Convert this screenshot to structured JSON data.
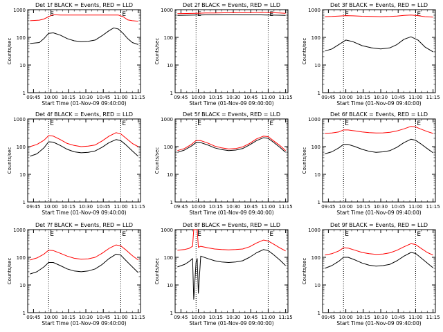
{
  "x_tick_labels": [
    "09:45",
    "10:00",
    "10:15",
    "10:30",
    "10:45",
    "11:00",
    "11:15"
  ],
  "y_tick_labels": [
    "1",
    "10",
    "100",
    "1000"
  ],
  "ylabel": "Counts/sec",
  "xlabel": "Start Time (01-Nov-09 09:40:00)",
  "marker_text": "E",
  "colors": {
    "events": "#000000",
    "lld": "#ff0000",
    "background": "#ffffff"
  },
  "chart_data": [
    {
      "type": "line",
      "title": "Det 1f BLACK = Events, RED = LLD",
      "x_unit": "minutes after 09:40:00",
      "xlim": [
        0,
        97
      ],
      "ylim": [
        1,
        1000
      ],
      "yscale": "log",
      "markers_x": [
        18,
        80
      ],
      "x": [
        2,
        10,
        14,
        18,
        22,
        28,
        34,
        40,
        46,
        52,
        58,
        64,
        70,
        74,
        78,
        82,
        86,
        90,
        95
      ],
      "series": [
        {
          "name": "Events",
          "values": [
            60,
            65,
            90,
            140,
            145,
            120,
            90,
            75,
            70,
            72,
            80,
            115,
            175,
            220,
            200,
            140,
            90,
            65,
            55
          ]
        },
        {
          "name": "LLD",
          "values": [
            400,
            420,
            460,
            560,
            660,
            640,
            640,
            640,
            640,
            640,
            640,
            640,
            640,
            640,
            640,
            560,
            430,
            400,
            380
          ]
        }
      ]
    },
    {
      "type": "line",
      "title": "Det 2f BLACK = Events, RED = LLD",
      "x_unit": "minutes after 09:40:00",
      "xlim": [
        0,
        97
      ],
      "ylim": [
        1,
        1000
      ],
      "yscale": "log",
      "markers_x": [
        18,
        80
      ],
      "x": [
        2,
        10,
        18,
        26,
        34,
        42,
        50,
        58,
        66,
        74,
        82,
        90,
        95
      ],
      "series": [
        {
          "name": "Events",
          "values": [
            620,
            630,
            640,
            650,
            650,
            660,
            660,
            650,
            650,
            650,
            640,
            630,
            620
          ]
        },
        {
          "name": "LLD",
          "values": [
            720,
            730,
            740,
            760,
            760,
            770,
            780,
            770,
            780,
            800,
            780,
            760,
            740
          ]
        }
      ]
    },
    {
      "type": "line",
      "title": "Det 3f BLACK = Events, RED = LLD",
      "x_unit": "minutes after 09:40:00",
      "xlim": [
        0,
        97
      ],
      "ylim": [
        1,
        1000
      ],
      "yscale": "log",
      "markers_x": [
        18,
        80
      ],
      "x": [
        2,
        8,
        14,
        20,
        26,
        34,
        42,
        50,
        58,
        64,
        70,
        76,
        82,
        88,
        95
      ],
      "series": [
        {
          "name": "Events",
          "values": [
            32,
            38,
            55,
            80,
            70,
            50,
            42,
            38,
            42,
            55,
            85,
            105,
            80,
            45,
            30
          ]
        },
        {
          "name": "LLD",
          "values": [
            560,
            570,
            590,
            610,
            600,
            580,
            570,
            560,
            570,
            590,
            620,
            640,
            610,
            560,
            540
          ]
        }
      ]
    },
    {
      "type": "line",
      "title": "Det 4f BLACK = Events, RED = LLD",
      "x_unit": "minutes after 09:40:00",
      "xlim": [
        0,
        97
      ],
      "ylim": [
        1,
        1000
      ],
      "yscale": "log",
      "markers_x": [
        18,
        80
      ],
      "x": [
        2,
        8,
        14,
        18,
        22,
        28,
        34,
        40,
        46,
        52,
        58,
        64,
        70,
        76,
        80,
        84,
        90,
        95
      ],
      "series": [
        {
          "name": "Events",
          "values": [
            45,
            55,
            90,
            150,
            145,
            110,
            80,
            65,
            60,
            62,
            70,
            95,
            140,
            180,
            165,
            120,
            70,
            45
          ]
        },
        {
          "name": "LLD",
          "values": [
            100,
            120,
            170,
            250,
            240,
            180,
            130,
            110,
            100,
            105,
            115,
            160,
            240,
            320,
            290,
            210,
            130,
            100
          ]
        }
      ]
    },
    {
      "type": "line",
      "title": "Det 5f BLACK = Events, RED = LLD",
      "x_unit": "minutes after 09:40:00",
      "xlim": [
        0,
        97
      ],
      "ylim": [
        1,
        1000
      ],
      "yscale": "log",
      "markers_x": [
        18,
        80
      ],
      "x": [
        2,
        8,
        14,
        18,
        22,
        28,
        34,
        40,
        46,
        52,
        58,
        64,
        70,
        76,
        80,
        84,
        90,
        95
      ],
      "series": [
        {
          "name": "Events",
          "values": [
            62,
            75,
            105,
            140,
            140,
            115,
            90,
            78,
            72,
            75,
            85,
            115,
            165,
            210,
            200,
            150,
            95,
            62
          ]
        },
        {
          "name": "LLD",
          "values": [
            72,
            85,
            120,
            165,
            165,
            135,
            105,
            90,
            82,
            85,
            98,
            130,
            190,
            240,
            230,
            170,
            110,
            72
          ]
        }
      ]
    },
    {
      "type": "line",
      "title": "Det 6f BLACK = Events, RED = LLD",
      "x_unit": "minutes after 09:40:00",
      "xlim": [
        0,
        97
      ],
      "ylim": [
        1,
        1000
      ],
      "yscale": "log",
      "markers_x": [
        18,
        80
      ],
      "x": [
        2,
        8,
        14,
        18,
        22,
        28,
        34,
        40,
        46,
        52,
        58,
        64,
        70,
        76,
        80,
        84,
        90,
        95
      ],
      "series": [
        {
          "name": "Events",
          "values": [
            55,
            65,
            90,
            120,
            120,
            100,
            80,
            68,
            62,
            65,
            72,
            95,
            140,
            185,
            170,
            130,
            85,
            60
          ]
        },
        {
          "name": "LLD",
          "values": [
            300,
            310,
            340,
            400,
            400,
            370,
            340,
            320,
            310,
            315,
            330,
            370,
            440,
            540,
            520,
            440,
            350,
            300
          ]
        }
      ]
    },
    {
      "type": "line",
      "title": "Det 7f BLACK = Events, RED = LLD",
      "x_unit": "minutes after 09:40:00",
      "xlim": [
        0,
        97
      ],
      "ylim": [
        1,
        1000
      ],
      "yscale": "log",
      "markers_x": [
        18,
        80
      ],
      "x": [
        2,
        8,
        14,
        18,
        22,
        28,
        34,
        40,
        46,
        52,
        58,
        64,
        70,
        76,
        80,
        84,
        90,
        95
      ],
      "series": [
        {
          "name": "Events",
          "values": [
            25,
            30,
            45,
            65,
            65,
            50,
            38,
            32,
            30,
            32,
            38,
            55,
            90,
            130,
            120,
            80,
            45,
            28
          ]
        },
        {
          "name": "LLD",
          "values": [
            80,
            95,
            130,
            180,
            175,
            140,
            110,
            92,
            85,
            88,
            100,
            140,
            210,
            280,
            260,
            190,
            115,
            80
          ]
        }
      ]
    },
    {
      "type": "line",
      "title": "Det 8f BLACK = Events, RED = LLD",
      "x_unit": "minutes after 09:40:00",
      "xlim": [
        0,
        97
      ],
      "ylim": [
        1,
        1000
      ],
      "yscale": "log",
      "markers_x": [
        18,
        80
      ],
      "x": [
        2,
        8,
        12,
        15,
        16,
        18,
        19,
        20,
        22,
        28,
        34,
        40,
        46,
        52,
        58,
        64,
        70,
        76,
        80,
        84,
        90,
        95
      ],
      "series": [
        {
          "name": "Events",
          "values": [
            45,
            55,
            70,
            90,
            3,
            65,
            90,
            5,
            110,
            90,
            75,
            68,
            65,
            68,
            75,
            100,
            145,
            190,
            175,
            130,
            80,
            50
          ]
        },
        {
          "name": "LLD",
          "values": [
            180,
            190,
            210,
            250,
            1000,
            1000,
            1000,
            230,
            250,
            220,
            200,
            190,
            185,
            190,
            200,
            240,
            330,
            420,
            390,
            310,
            220,
            170
          ]
        }
      ]
    },
    {
      "type": "line",
      "title": "Det 9f BLACK = Events, RED = LLD",
      "x_unit": "minutes after 09:40:00",
      "xlim": [
        0,
        97
      ],
      "ylim": [
        1,
        1000
      ],
      "yscale": "log",
      "markers_x": [
        18,
        80
      ],
      "x": [
        2,
        8,
        14,
        18,
        22,
        28,
        34,
        40,
        46,
        52,
        58,
        64,
        70,
        76,
        80,
        84,
        90,
        95
      ],
      "series": [
        {
          "name": "Events",
          "values": [
            40,
            50,
            72,
            100,
            100,
            80,
            62,
            52,
            48,
            50,
            56,
            75,
            110,
            150,
            138,
            100,
            62,
            42
          ]
        },
        {
          "name": "LLD",
          "values": [
            120,
            135,
            170,
            220,
            215,
            180,
            150,
            135,
            128,
            132,
            145,
            180,
            240,
            310,
            290,
            220,
            150,
            120
          ]
        }
      ]
    }
  ]
}
